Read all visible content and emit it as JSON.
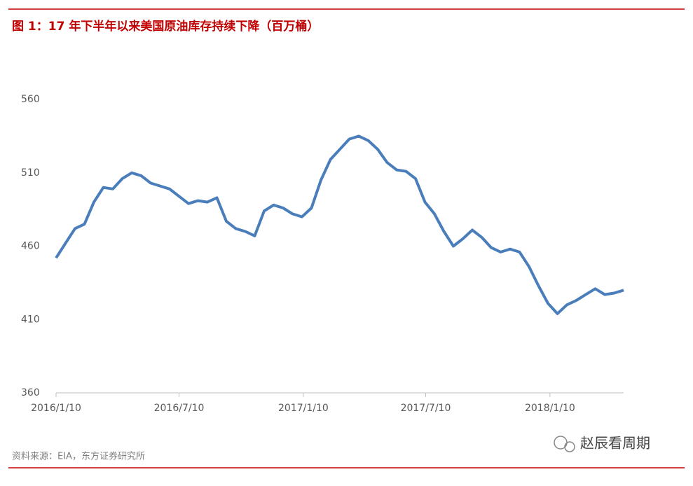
{
  "chart_data": {
    "type": "line",
    "title": "图 1：17 年下半年以来美国原油库存持续下降（百万桶）",
    "source": "资料来源：EIA，东方证券研究所",
    "watermark": "赵辰看周期",
    "x": [
      "2016/1/10",
      "2016/1/24",
      "2016/2/7",
      "2016/2/21",
      "2016/3/6",
      "2016/3/20",
      "2016/4/3",
      "2016/4/17",
      "2016/5/1",
      "2016/5/15",
      "2016/5/29",
      "2016/6/12",
      "2016/6/26",
      "2016/7/10",
      "2016/7/24",
      "2016/8/7",
      "2016/8/21",
      "2016/9/4",
      "2016/9/18",
      "2016/10/2",
      "2016/10/16",
      "2016/10/30",
      "2016/11/13",
      "2016/11/27",
      "2016/12/11",
      "2016/12/25",
      "2017/1/8",
      "2017/1/22",
      "2017/2/5",
      "2017/2/19",
      "2017/3/5",
      "2017/3/19",
      "2017/4/2",
      "2017/4/16",
      "2017/4/30",
      "2017/5/14",
      "2017/5/28",
      "2017/6/11",
      "2017/6/25",
      "2017/7/9",
      "2017/7/23",
      "2017/8/6",
      "2017/8/20",
      "2017/9/3",
      "2017/9/17",
      "2017/10/1",
      "2017/10/15",
      "2017/10/29",
      "2017/11/12",
      "2017/11/26",
      "2017/12/10",
      "2017/12/24",
      "2018/1/7",
      "2018/1/21",
      "2018/2/4",
      "2018/2/18",
      "2018/3/4",
      "2018/3/18",
      "2018/4/1",
      "2018/4/15",
      "2018/4/29"
    ],
    "values": [
      452,
      462,
      472,
      475,
      490,
      500,
      499,
      506,
      510,
      508,
      503,
      501,
      499,
      494,
      489,
      491,
      490,
      493,
      477,
      472,
      470,
      467,
      484,
      488,
      486,
      482,
      480,
      486,
      505,
      519,
      526,
      533,
      535,
      532,
      526,
      517,
      512,
      511,
      506,
      490,
      482,
      470,
      460,
      465,
      471,
      466,
      459,
      456,
      458,
      456,
      446,
      433,
      421,
      414,
      420,
      423,
      427,
      431,
      427,
      428,
      430
    ],
    "color": "#4a7ebb",
    "xlim": [
      "2016/1/10",
      "2018/4/29"
    ],
    "xticks": [
      "2016/1/10",
      "2016/7/10",
      "2017/1/10",
      "2017/7/10",
      "2018/1/10"
    ],
    "ylim": [
      360,
      560
    ],
    "yticks": [
      360,
      410,
      460,
      510,
      560
    ]
  }
}
